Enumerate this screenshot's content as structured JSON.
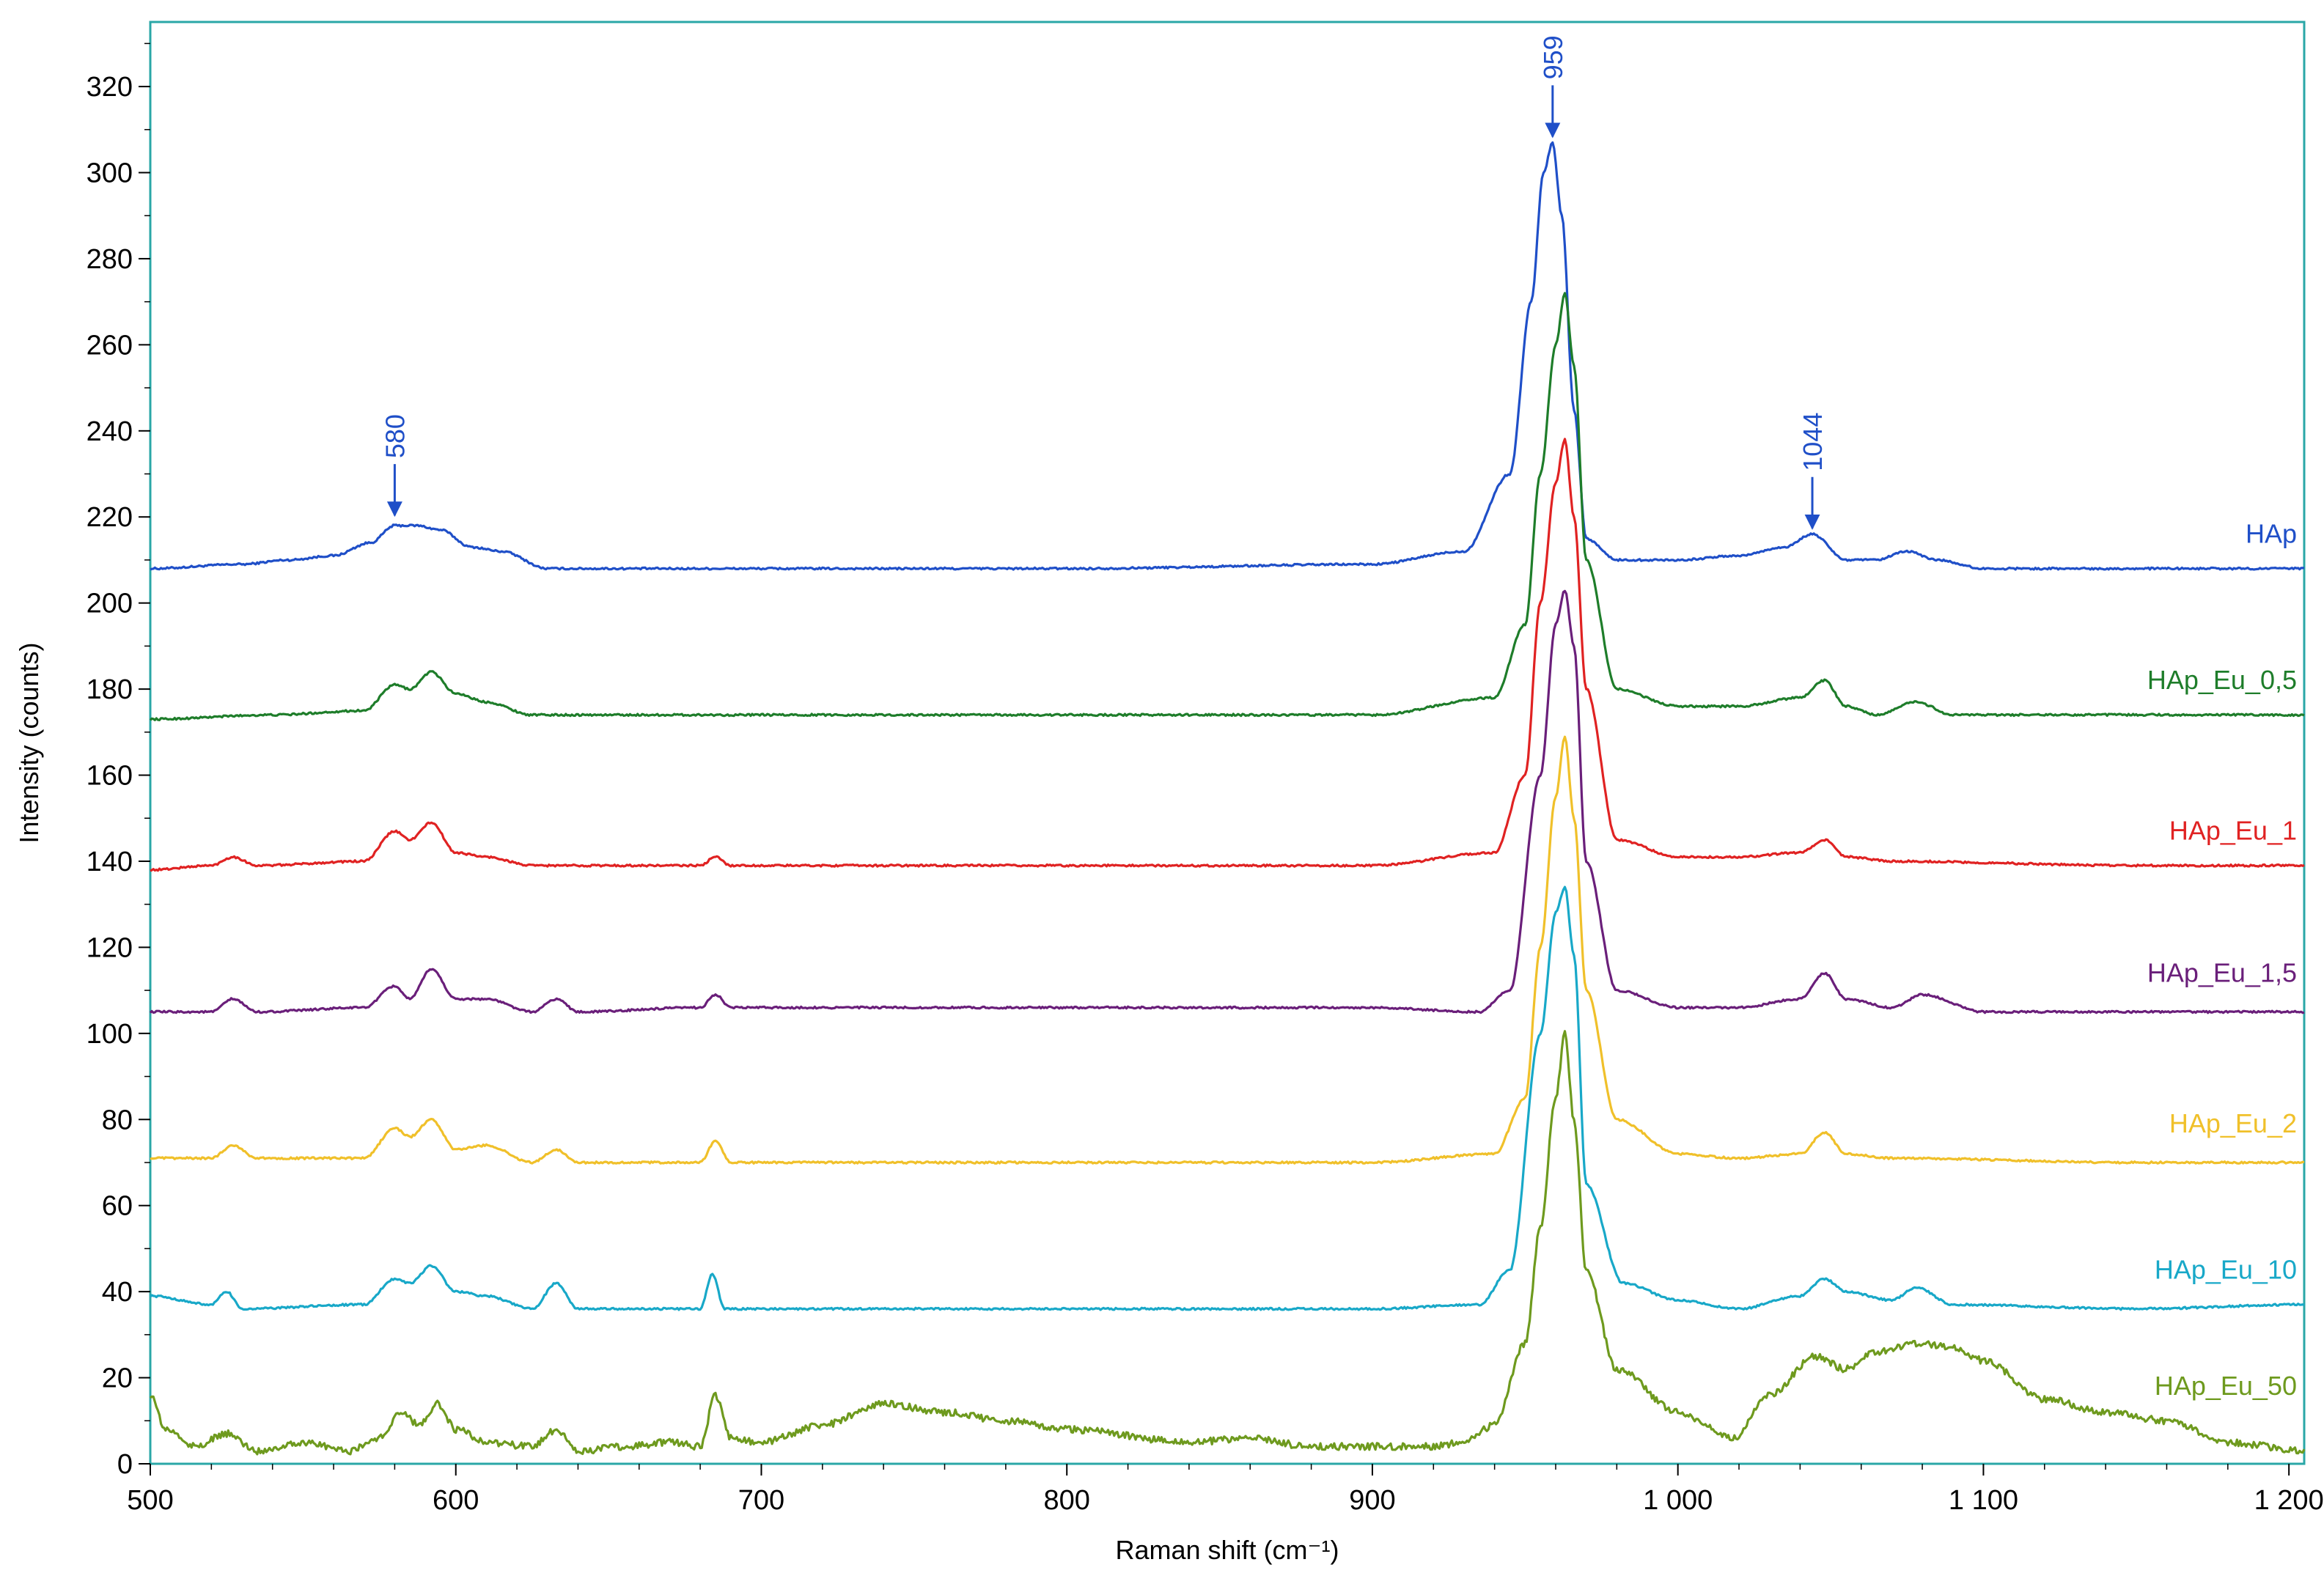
{
  "chart_data": {
    "type": "line",
    "title": "",
    "xlabel": "Raman shift (cm⁻¹)",
    "ylabel": "Intensity (counts)",
    "xlim": [
      500,
      1205
    ],
    "ylim": [
      0,
      335
    ],
    "x_ticks": [
      500,
      600,
      700,
      800,
      900,
      1000,
      1100,
      1200
    ],
    "x_tick_labels": [
      "500",
      "600",
      "700",
      "800",
      "900",
      "1 000",
      "1 100",
      "1 200"
    ],
    "y_ticks": [
      0,
      20,
      40,
      60,
      80,
      100,
      120,
      140,
      160,
      180,
      200,
      220,
      240,
      260,
      280,
      300,
      320
    ],
    "y_tick_labels": [
      "0",
      "20",
      "40",
      "60",
      "80",
      "100",
      "120",
      "140",
      "160",
      "180",
      "200",
      "220",
      "240",
      "260",
      "280",
      "300",
      "320"
    ],
    "grid": false,
    "frame_color": "#2aa7a7",
    "annotations": [
      {
        "text": "580",
        "x": 580,
        "y": 219,
        "color": "#1f4fc8"
      },
      {
        "text": "959",
        "x": 959,
        "y": 307,
        "color": "#1f4fc8"
      },
      {
        "text": "1044",
        "x": 1044,
        "y": 216,
        "color": "#1f4fc8"
      }
    ],
    "series": [
      {
        "name": "HAp",
        "color": "#1f4fc8",
        "label_y": 214,
        "x": [
          500,
          530,
          545,
          560,
          572,
          580,
          587,
          595,
          605,
          615,
          630,
          650,
          700,
          800,
          900,
          930,
          945,
          952,
          956,
          959,
          962,
          966,
          970,
          980,
          1000,
          1020,
          1035,
          1044,
          1055,
          1065,
          1075,
          1085,
          1100,
          1150,
          1205
        ],
        "y": [
          208,
          209,
          210,
          211,
          214,
          218,
          218,
          217,
          213,
          212,
          208,
          208,
          208,
          208,
          209,
          212,
          230,
          270,
          300,
          307,
          290,
          245,
          215,
          210,
          210,
          211,
          213,
          216,
          210,
          210,
          212,
          210,
          208,
          208,
          208
        ]
      },
      {
        "name": "HAp_Eu_0,5",
        "color": "#1e7d2a",
        "label_y": 180,
        "x": [
          500,
          540,
          570,
          580,
          585,
          592,
          600,
          610,
          625,
          700,
          800,
          900,
          940,
          950,
          955,
          960,
          963,
          966,
          970,
          980,
          1000,
          1020,
          1040,
          1048,
          1055,
          1065,
          1078,
          1090,
          1150,
          1205
        ],
        "y": [
          173,
          174,
          175,
          181,
          180,
          184,
          179,
          177,
          174,
          174,
          174,
          174,
          178,
          195,
          230,
          260,
          272,
          255,
          210,
          180,
          176,
          176,
          178,
          182,
          176,
          174,
          177,
          174,
          174,
          174
        ]
      },
      {
        "name": "HAp_Eu_1",
        "color": "#e02222",
        "label_y": 145,
        "x": [
          500,
          520,
          527,
          535,
          570,
          580,
          585,
          592,
          600,
          610,
          625,
          680,
          685,
          690,
          700,
          800,
          900,
          940,
          950,
          955,
          960,
          963,
          966,
          970,
          980,
          1000,
          1020,
          1040,
          1048,
          1055,
          1070,
          1150,
          1205
        ],
        "y": [
          138,
          139,
          141,
          139,
          140,
          147,
          145,
          149,
          142,
          141,
          139,
          139,
          141,
          139,
          139,
          139,
          139,
          142,
          160,
          200,
          228,
          238,
          220,
          180,
          145,
          141,
          141,
          142,
          145,
          141,
          140,
          139,
          139
        ]
      },
      {
        "name": "HAp_Eu_1,5",
        "color": "#6a1f7a",
        "label_y": 112,
        "x": [
          500,
          520,
          527,
          535,
          570,
          580,
          585,
          592,
          600,
          610,
          625,
          633,
          640,
          680,
          685,
          690,
          700,
          800,
          900,
          935,
          945,
          955,
          960,
          963,
          966,
          970,
          980,
          1000,
          1020,
          1040,
          1048,
          1055,
          1070,
          1080,
          1100,
          1150,
          1205
        ],
        "y": [
          105,
          105,
          108,
          105,
          106,
          111,
          108,
          115,
          108,
          108,
          105,
          108,
          105,
          106,
          109,
          106,
          106,
          106,
          106,
          105,
          110,
          160,
          195,
          203,
          190,
          140,
          110,
          106,
          106,
          108,
          114,
          108,
          106,
          109,
          105,
          105,
          105
        ]
      },
      {
        "name": "HAp_Eu_2",
        "color": "#f0c02a",
        "label_y": 77,
        "x": [
          500,
          520,
          527,
          535,
          570,
          580,
          585,
          592,
          600,
          610,
          625,
          633,
          640,
          680,
          685,
          690,
          700,
          800,
          900,
          940,
          950,
          955,
          960,
          963,
          966,
          970,
          980,
          1000,
          1020,
          1040,
          1048,
          1055,
          1070,
          1150,
          1205
        ],
        "y": [
          71,
          71,
          74,
          71,
          71,
          78,
          76,
          80,
          73,
          74,
          70,
          73,
          70,
          70,
          75,
          70,
          70,
          70,
          70,
          72,
          85,
          120,
          155,
          169,
          150,
          110,
          80,
          72,
          71,
          72,
          77,
          72,
          71,
          70,
          70
        ]
      },
      {
        "name": "HAp_Eu_10",
        "color": "#18a8c8",
        "label_y": 43,
        "x": [
          500,
          520,
          525,
          530,
          570,
          580,
          585,
          592,
          600,
          610,
          625,
          633,
          640,
          680,
          684,
          688,
          700,
          800,
          900,
          935,
          945,
          955,
          960,
          963,
          966,
          970,
          982,
          1000,
          1020,
          1040,
          1048,
          1055,
          1070,
          1078,
          1090,
          1150,
          1205
        ],
        "y": [
          39,
          37,
          40,
          36,
          37,
          43,
          42,
          46,
          40,
          39,
          36,
          42,
          36,
          36,
          44,
          36,
          36,
          36,
          36,
          37,
          45,
          100,
          128,
          134,
          118,
          65,
          42,
          38,
          36,
          39,
          43,
          40,
          38,
          41,
          37,
          36,
          37
        ]
      },
      {
        "name": "HAp_Eu_50",
        "color": "#6e9a1e",
        "label_y": 16,
        "x": [
          500,
          505,
          515,
          525,
          535,
          550,
          565,
          575,
          582,
          588,
          594,
          600,
          610,
          625,
          633,
          640,
          655,
          670,
          680,
          685,
          690,
          700,
          720,
          740,
          760,
          780,
          800,
          840,
          860,
          880,
          900,
          920,
          930,
          940,
          950,
          955,
          960,
          963,
          966,
          970,
          980,
          1000,
          1018,
          1030,
          1045,
          1055,
          1065,
          1080,
          1090,
          1100,
          1120,
          1140,
          1160,
          1180,
          1205
        ],
        "y": [
          16,
          8,
          4,
          7,
          3,
          5,
          3,
          6,
          12,
          9,
          14,
          8,
          5,
          4,
          8,
          3,
          4,
          5,
          4,
          16,
          6,
          5,
          9,
          14,
          12,
          10,
          8,
          5,
          6,
          4,
          4,
          4,
          5,
          9,
          28,
          55,
          85,
          100,
          80,
          45,
          22,
          12,
          6,
          16,
          25,
          22,
          26,
          28,
          27,
          24,
          15,
          12,
          10,
          5,
          3
        ]
      }
    ]
  }
}
